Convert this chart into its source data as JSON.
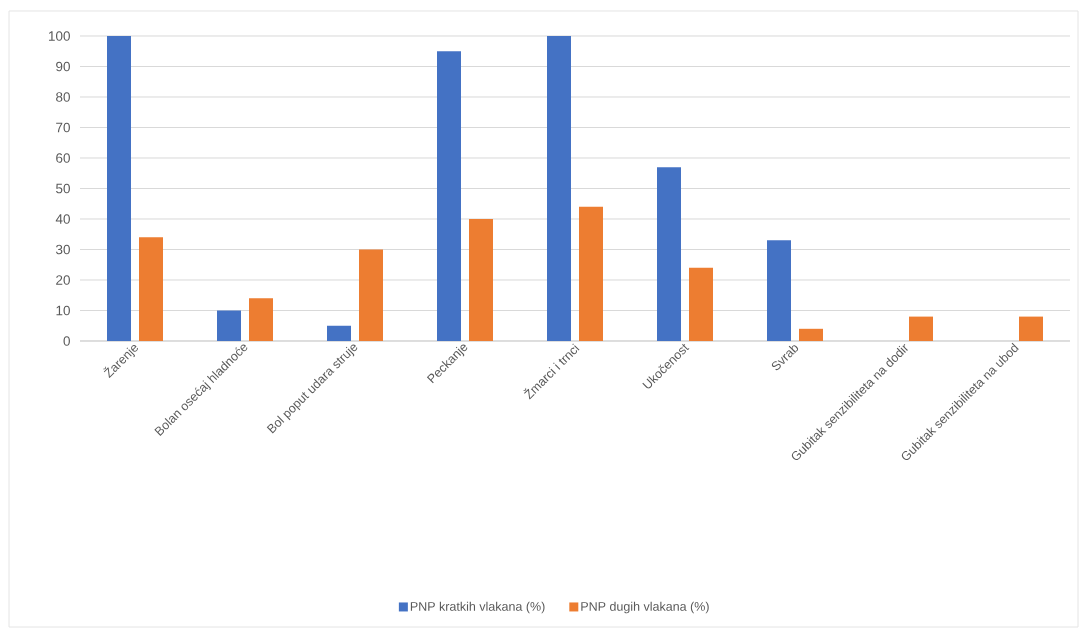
{
  "chart_data": {
    "type": "bar",
    "categories": [
      "Žarenje",
      "Bolan osećaj hladnoće",
      "Bol poput udara struje",
      "Peckanje",
      "Žmarci i trnci",
      "Ukočenost",
      "Svrab",
      "Gubitak senzibiliteta na dodir",
      "Gubitak senzibiliteta na ubod"
    ],
    "series": [
      {
        "name": "PNP kratkih vlakana (%)",
        "color": "#4472c4",
        "values": [
          100,
          10,
          5,
          95,
          100,
          57,
          33,
          0,
          0
        ]
      },
      {
        "name": "PNP dugih vlakana (%)",
        "color": "#ed7d31",
        "values": [
          34,
          14,
          30,
          40,
          44,
          24,
          4,
          8,
          8
        ]
      }
    ],
    "ylim": [
      0,
      100
    ],
    "yticks": [
      0,
      10,
      20,
      30,
      40,
      50,
      60,
      70,
      80,
      90,
      100
    ],
    "grid": "y",
    "legend": "bottom"
  }
}
